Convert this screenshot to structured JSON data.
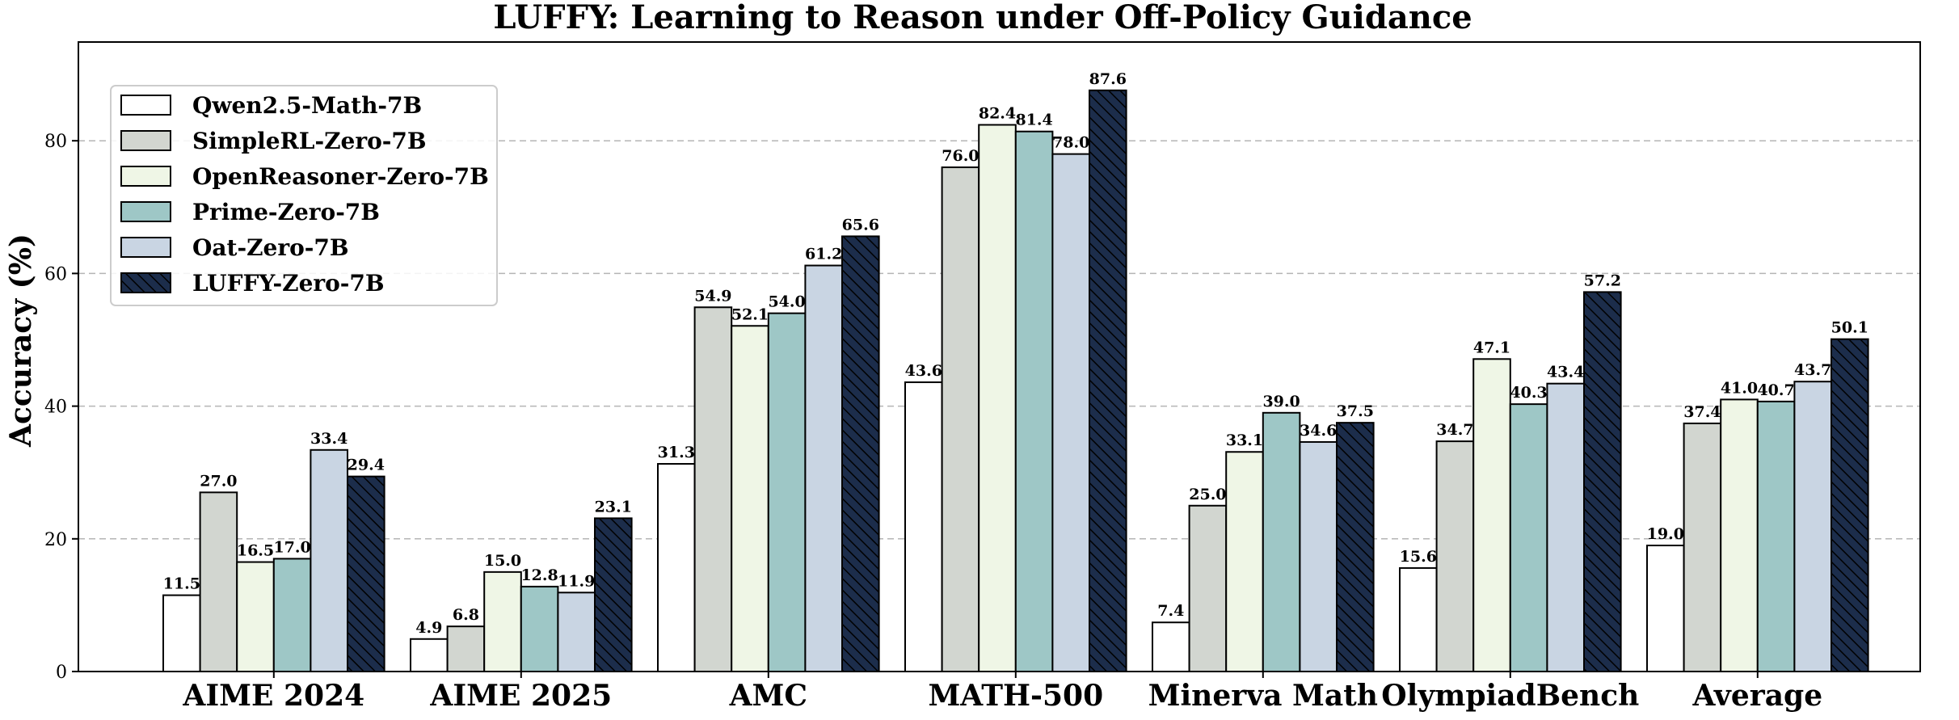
{
  "chart_data": {
    "type": "bar",
    "title": "LUFFY: Learning to Reason under Off-Policy Guidance",
    "ylabel": "Accuracy (%)",
    "xlabel": "",
    "ylim": [
      0,
      95
    ],
    "yticks": [
      0,
      20,
      40,
      60,
      80
    ],
    "grid": "horizontal-dashed",
    "legend_position": "top-left",
    "categories": [
      "AIME 2024",
      "AIME 2025",
      "AMC",
      "MATH-500",
      "Minerva Math",
      "OlympiadBench",
      "Average"
    ],
    "series": [
      {
        "name": "Qwen2.5-Math-7B",
        "color": "#ffffff",
        "hatch": false,
        "values": [
          11.5,
          4.9,
          31.3,
          43.6,
          7.4,
          15.6,
          19.0
        ],
        "labels": [
          "11.5",
          "4.9",
          "31.3",
          "43.6",
          "7.4",
          "15.6",
          "19.0"
        ]
      },
      {
        "name": "SimpleRL-Zero-7B",
        "color": "#d2d6d0",
        "hatch": false,
        "values": [
          27.0,
          6.8,
          54.9,
          76.0,
          25.0,
          34.7,
          37.4
        ],
        "labels": [
          "27.0",
          "6.8",
          "54.9",
          "76.0",
          "25.0",
          "34.7",
          "37.4"
        ]
      },
      {
        "name": "OpenReasoner-Zero-7B",
        "color": "#eff6e6",
        "hatch": false,
        "values": [
          16.5,
          15.0,
          52.1,
          82.4,
          33.1,
          47.1,
          41.0
        ],
        "labels": [
          "16.5",
          "15.0",
          "52.1",
          "82.4",
          "33.1",
          "47.1",
          "41.0"
        ]
      },
      {
        "name": "Prime-Zero-7B",
        "color": "#9ec7c6",
        "hatch": false,
        "values": [
          17.0,
          12.8,
          54.0,
          81.4,
          39.0,
          40.3,
          40.7
        ],
        "labels": [
          "17.0",
          "12.8",
          "54.0",
          "81.4",
          "39.0",
          "40.3",
          "40.7"
        ]
      },
      {
        "name": "Oat-Zero-7B",
        "color": "#c9d5e3",
        "hatch": false,
        "values": [
          33.4,
          11.9,
          61.2,
          78.0,
          34.6,
          43.4,
          43.7
        ],
        "labels": [
          "33.4",
          "11.9",
          "61.2",
          "78.0",
          "34.6",
          "43.4",
          "43.7"
        ]
      },
      {
        "name": "LUFFY-Zero-7B",
        "color": "#1c2d4b",
        "hatch": true,
        "values": [
          29.4,
          23.1,
          65.6,
          87.6,
          37.5,
          57.2,
          50.1
        ],
        "labels": [
          "29.4",
          "23.1",
          "65.6",
          "87.6",
          "37.5",
          "57.2",
          "50.1"
        ]
      }
    ]
  }
}
